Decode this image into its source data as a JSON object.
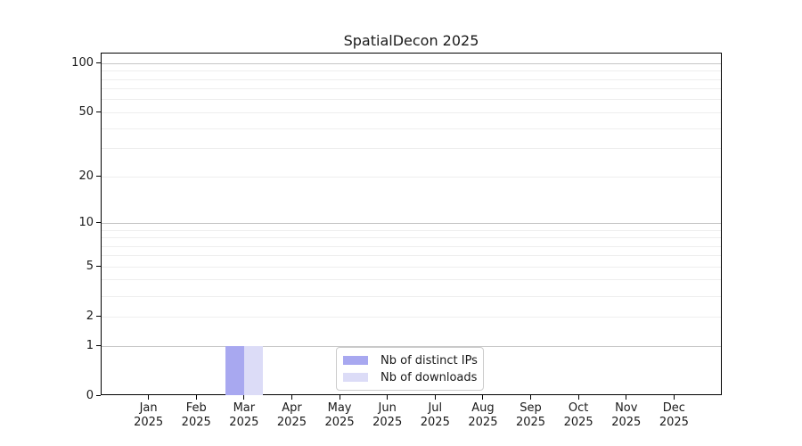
{
  "chart_data": {
    "type": "bar",
    "title": "SpatialDecon 2025",
    "categories": [
      "Jan 2025",
      "Feb 2025",
      "Mar 2025",
      "Apr 2025",
      "May 2025",
      "Jun 2025",
      "Jul 2025",
      "Aug 2025",
      "Sep 2025",
      "Oct 2025",
      "Nov 2025",
      "Dec 2025"
    ],
    "series": [
      {
        "name": "Nb of distinct IPs",
        "color": "#a8a8f0",
        "values": [
          0,
          0,
          1,
          0,
          0,
          0,
          0,
          0,
          0,
          0,
          0,
          0
        ]
      },
      {
        "name": "Nb of downloads",
        "color": "#dcdcf7",
        "values": [
          0,
          0,
          1,
          0,
          0,
          0,
          0,
          0,
          0,
          0,
          0,
          0
        ]
      }
    ],
    "yscale": "log1p",
    "ytick_values": [
      0,
      1,
      2,
      5,
      10,
      20,
      50,
      100
    ],
    "minor_grid_values": [
      2,
      3,
      4,
      5,
      6,
      7,
      8,
      9,
      20,
      30,
      40,
      50,
      60,
      70,
      80,
      90
    ],
    "major_grid_values": [
      1,
      10,
      100
    ],
    "ylim": [
      0,
      115
    ],
    "xlabel": "",
    "ylabel": "",
    "grid": "both",
    "legend_position": "lower center"
  },
  "colors": {
    "grid_major": "#c6c6c6",
    "grid_minor": "#eeeeee",
    "axis": "#000000",
    "text": "#1a1a1a",
    "legend_border": "#cccccc"
  }
}
